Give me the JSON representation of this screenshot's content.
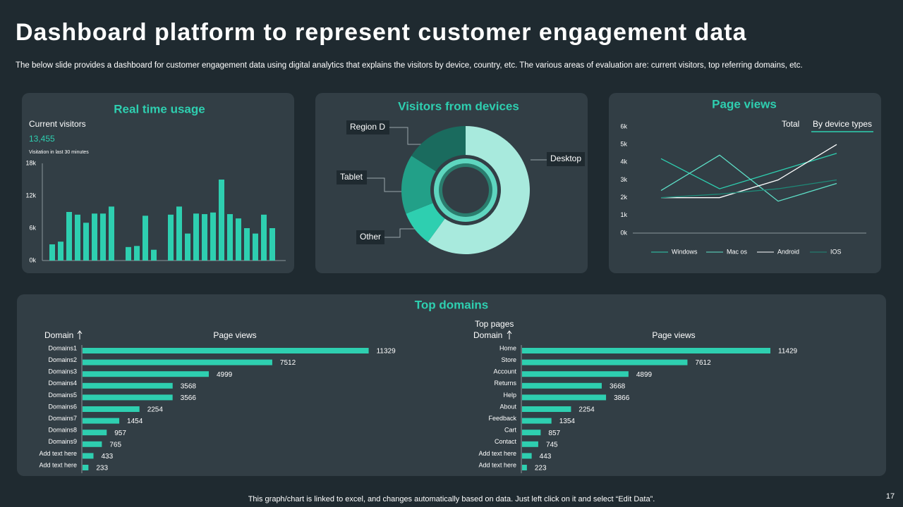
{
  "title": "Dashboard platform to represent customer engagement data",
  "subtitle": "The below slide provides a dashboard for customer engagement data using digital analytics that explains the visitors by device, country, etc. The various areas of evaluation are: current visitors, top referring domains, etc.",
  "section_title": "Top domains",
  "footer": "This graph/chart is linked to excel, and changes automatically based on data. Just left click on it and select “Edit Data”.",
  "page_number": "17",
  "chart_data": [
    {
      "type": "bar",
      "title": "Real time usage",
      "metric_label": "Current visitors",
      "metric_value": "13,455",
      "metric_note": "Visitation in last 30 minutes",
      "color": "#2ecfb0",
      "values": [
        3.0,
        3.5,
        9.0,
        8.5,
        7.0,
        8.7,
        8.7,
        10.0,
        null,
        2.5,
        2.7,
        8.3,
        2.0,
        null,
        8.5,
        10.0,
        5.0,
        8.7,
        8.6,
        8.9,
        15.0,
        8.6,
        7.8,
        6.0,
        5.0,
        8.5,
        6.0
      ],
      "ylim": [
        0,
        18
      ],
      "yticks": [
        {
          "value": 0,
          "label": "0k"
        },
        {
          "value": 6,
          "label": "6k"
        },
        {
          "value": 12,
          "label": "12k"
        },
        {
          "value": 18,
          "label": "18k"
        }
      ]
    },
    {
      "type": "pie",
      "title": "Visitors from devices",
      "categories": [
        "Desktop",
        "Other",
        "Tablet",
        "Region D"
      ],
      "values": [
        60,
        9,
        15,
        16
      ],
      "colors": [
        "#a8eadd",
        "#2ecfb0",
        "#22a088",
        "#1a6b5e"
      ]
    },
    {
      "type": "line",
      "title": "Page views",
      "toggles": [
        "Total",
        "By device types"
      ],
      "series": [
        {
          "name": "Windows",
          "color": "#2ecfb0",
          "values": [
            4.2,
            2.5,
            3.5,
            4.5
          ]
        },
        {
          "name": "Mac os",
          "color": "#5ee0c8",
          "values": [
            2.4,
            4.4,
            1.8,
            2.8
          ]
        },
        {
          "name": "Android",
          "color": "#ffffff",
          "values": [
            2.0,
            2.0,
            3.0,
            5.0
          ]
        },
        {
          "name": "IOS",
          "color": "#1e8a78",
          "values": [
            2.0,
            2.2,
            2.5,
            3.0
          ]
        }
      ],
      "ylim": [
        0,
        6
      ],
      "yticks": [
        {
          "value": 0,
          "label": "0k"
        },
        {
          "value": 1,
          "label": "1k"
        },
        {
          "value": 2,
          "label": "2k"
        },
        {
          "value": 3,
          "label": "3k"
        },
        {
          "value": 4,
          "label": "4k"
        },
        {
          "value": 5,
          "label": "5k"
        },
        {
          "value": 6,
          "label": "6k"
        }
      ]
    },
    {
      "type": "hbar",
      "category_header": "Domain",
      "value_header": "Page views",
      "color": "#2ecfb0",
      "categories": [
        "Domains1",
        "Domains2",
        "Domains3",
        "Domains4",
        "Domains5",
        "Domains6",
        "Domains7",
        "Domains8",
        "Domains9",
        "Add text here",
        "Add text here"
      ],
      "values": [
        11329,
        7512,
        4999,
        3568,
        3566,
        2254,
        1454,
        957,
        765,
        433,
        233
      ]
    },
    {
      "type": "hbar",
      "title": "Top pages",
      "category_header": "Domain",
      "value_header": "Page views",
      "color": "#2ecfb0",
      "categories": [
        "Home",
        "Store",
        "Account",
        "Returns",
        "Help",
        "About",
        "Feedback",
        "Cart",
        "Contact",
        "Add text here",
        "Add text here"
      ],
      "values": [
        11429,
        7612,
        4899,
        3668,
        3866,
        2254,
        1354,
        857,
        745,
        443,
        223
      ]
    }
  ]
}
